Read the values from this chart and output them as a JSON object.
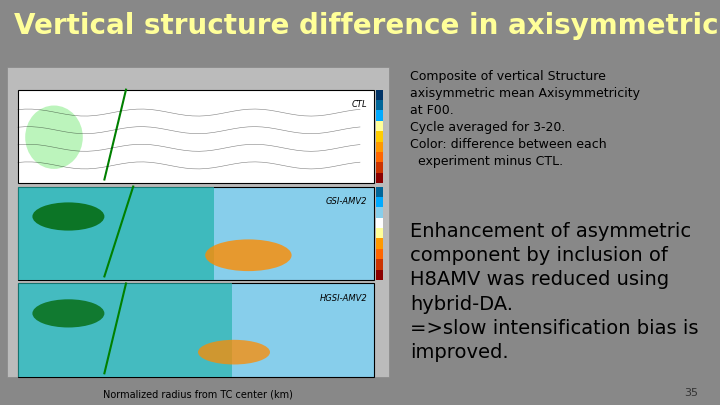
{
  "title": "Vertical structure difference in axisymmetricity",
  "title_color": "#FFFF99",
  "title_bg_color": "#4a4a4a",
  "slide_bg_color": "#888888",
  "content_bg_color": "#cccccc",
  "small_text": "Composite of vertical Structure\naxisymmetric mean Axisymmetricity\nat F00.\nCycle averaged for 3-20.\nColor: difference between each\n  experiment minus CTL.",
  "large_text": "Enhancement of asymmetric\ncomponent by inclusion of\nH8AMV was reduced using\nhybrid-DA.\n=>slow intensification bias is\nimproved.",
  "xlabel": "Normalized radius from TC center (km)",
  "page_num": "35",
  "small_text_size": 9,
  "large_text_size": 14,
  "title_fontsize": 20
}
